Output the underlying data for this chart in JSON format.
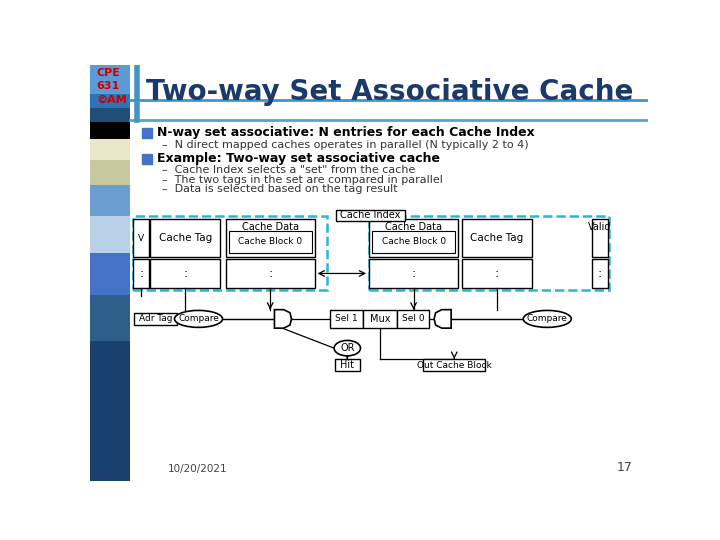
{
  "title": "Two-way Set Associative Cache",
  "title_color": "#1a3a6b",
  "title_fontsize": 20,
  "bullet_color": "#4472c4",
  "bullet1_bold": "N-way set associative: N entries for each Cache Index",
  "bullet1_sub": "N direct mapped caches operates in parallel (N typically 2 to 4)",
  "bullet2_bold": "Example: Two-way set associative cache",
  "bullet2_subs": [
    "Cache Index selects a \"set\" from the cache",
    "The two tags in the set are compared in parallel",
    "Data is selected based on the tag result"
  ],
  "dashed_color": "#29b6d4",
  "cpe_text": "CPE\n631\n©AM",
  "cpe_color": "#cc0000",
  "date_text": "10/20/2021",
  "page_num": "17",
  "left_bar_colors": [
    "#5b9bd5",
    "#2e75b6",
    "#1f4e79",
    "#000000",
    "#e8e8c8",
    "#c8c8a0",
    "#6b9fd4",
    "#b8d0e8",
    "#4472c4",
    "#2e5f8a",
    "#1a4070"
  ],
  "left_bar_heights": [
    38,
    18,
    18,
    22,
    28,
    32,
    40,
    48,
    55,
    60,
    181
  ]
}
